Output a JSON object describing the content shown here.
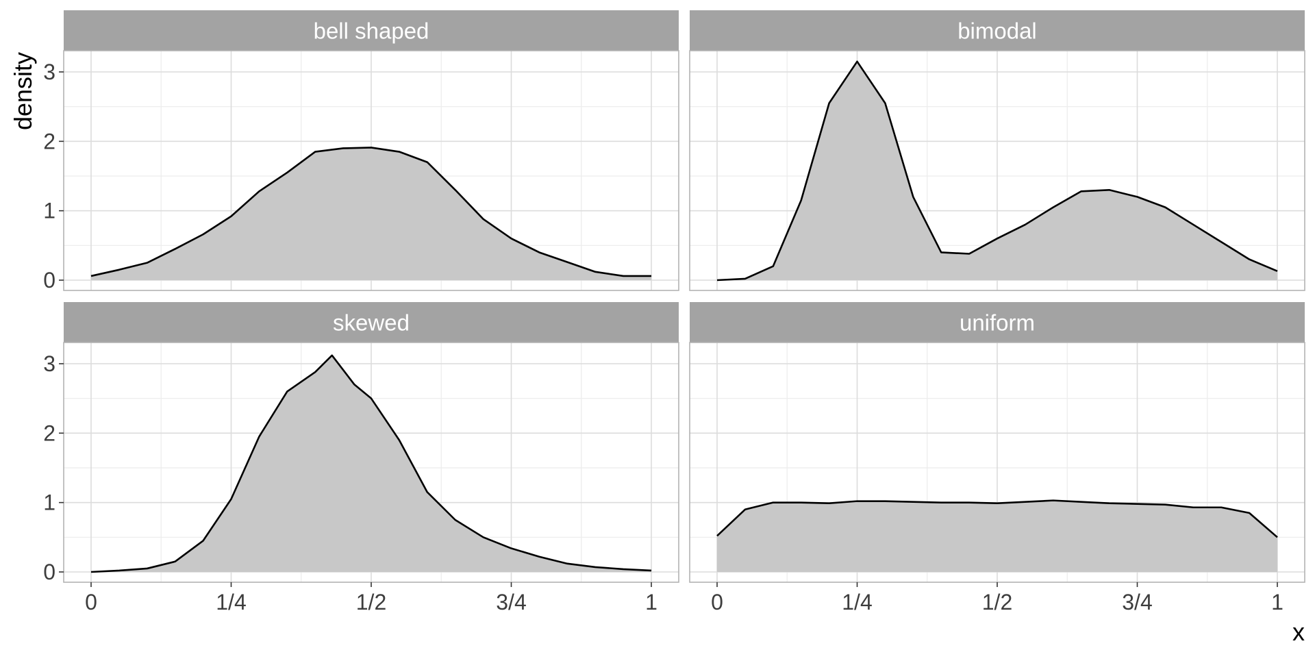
{
  "chart_data": {
    "type": "area",
    "facets": [
      "bell shaped",
      "bimodal",
      "skewed",
      "uniform"
    ],
    "xlabel": "x",
    "ylabel": "density",
    "xlim": [
      0,
      1
    ],
    "ylim": [
      0,
      3.2
    ],
    "x_ticks": [
      0,
      0.25,
      0.5,
      0.75,
      1
    ],
    "x_tick_labels": [
      "0",
      "1/4",
      "1/2",
      "3/4",
      "1"
    ],
    "y_ticks": [
      0,
      1,
      2,
      3
    ],
    "y_tick_labels": [
      "0",
      "1",
      "2",
      "3"
    ],
    "grid": true,
    "fill_color": "#c8c8c8",
    "line_color": "#000000",
    "strip_color": "#a3a3a3",
    "series": [
      {
        "facet": "bell shaped",
        "points": [
          [
            0,
            0.06
          ],
          [
            0.05,
            0.15
          ],
          [
            0.1,
            0.25
          ],
          [
            0.15,
            0.45
          ],
          [
            0.2,
            0.66
          ],
          [
            0.25,
            0.92
          ],
          [
            0.3,
            1.28
          ],
          [
            0.35,
            1.55
          ],
          [
            0.4,
            1.85
          ],
          [
            0.45,
            1.9
          ],
          [
            0.5,
            1.91
          ],
          [
            0.55,
            1.85
          ],
          [
            0.6,
            1.7
          ],
          [
            0.65,
            1.3
          ],
          [
            0.7,
            0.88
          ],
          [
            0.75,
            0.6
          ],
          [
            0.8,
            0.4
          ],
          [
            0.85,
            0.26
          ],
          [
            0.9,
            0.12
          ],
          [
            0.95,
            0.06
          ],
          [
            1,
            0.06
          ]
        ]
      },
      {
        "facet": "bimodal",
        "points": [
          [
            0,
            0.0
          ],
          [
            0.05,
            0.02
          ],
          [
            0.1,
            0.2
          ],
          [
            0.15,
            1.15
          ],
          [
            0.2,
            2.55
          ],
          [
            0.25,
            3.15
          ],
          [
            0.3,
            2.55
          ],
          [
            0.35,
            1.2
          ],
          [
            0.4,
            0.4
          ],
          [
            0.45,
            0.38
          ],
          [
            0.5,
            0.6
          ],
          [
            0.55,
            0.8
          ],
          [
            0.6,
            1.05
          ],
          [
            0.65,
            1.28
          ],
          [
            0.7,
            1.3
          ],
          [
            0.75,
            1.2
          ],
          [
            0.8,
            1.05
          ],
          [
            0.85,
            0.8
          ],
          [
            0.9,
            0.55
          ],
          [
            0.95,
            0.3
          ],
          [
            1,
            0.13
          ]
        ]
      },
      {
        "facet": "skewed",
        "points": [
          [
            0,
            0.0
          ],
          [
            0.05,
            0.02
          ],
          [
            0.1,
            0.05
          ],
          [
            0.15,
            0.15
          ],
          [
            0.2,
            0.45
          ],
          [
            0.25,
            1.05
          ],
          [
            0.3,
            1.95
          ],
          [
            0.35,
            2.6
          ],
          [
            0.4,
            2.88
          ],
          [
            0.43,
            3.12
          ],
          [
            0.47,
            2.7
          ],
          [
            0.5,
            2.5
          ],
          [
            0.55,
            1.9
          ],
          [
            0.6,
            1.15
          ],
          [
            0.65,
            0.75
          ],
          [
            0.7,
            0.5
          ],
          [
            0.75,
            0.34
          ],
          [
            0.8,
            0.22
          ],
          [
            0.85,
            0.12
          ],
          [
            0.9,
            0.07
          ],
          [
            0.95,
            0.04
          ],
          [
            1,
            0.02
          ]
        ]
      },
      {
        "facet": "uniform",
        "points": [
          [
            0,
            0.52
          ],
          [
            0.05,
            0.9
          ],
          [
            0.1,
            1.0
          ],
          [
            0.15,
            1.0
          ],
          [
            0.2,
            0.99
          ],
          [
            0.25,
            1.02
          ],
          [
            0.3,
            1.02
          ],
          [
            0.35,
            1.01
          ],
          [
            0.4,
            1.0
          ],
          [
            0.45,
            1.0
          ],
          [
            0.5,
            0.99
          ],
          [
            0.55,
            1.01
          ],
          [
            0.6,
            1.03
          ],
          [
            0.65,
            1.01
          ],
          [
            0.7,
            0.99
          ],
          [
            0.75,
            0.98
          ],
          [
            0.8,
            0.97
          ],
          [
            0.85,
            0.93
          ],
          [
            0.9,
            0.93
          ],
          [
            0.95,
            0.85
          ],
          [
            1,
            0.5
          ]
        ]
      }
    ]
  }
}
